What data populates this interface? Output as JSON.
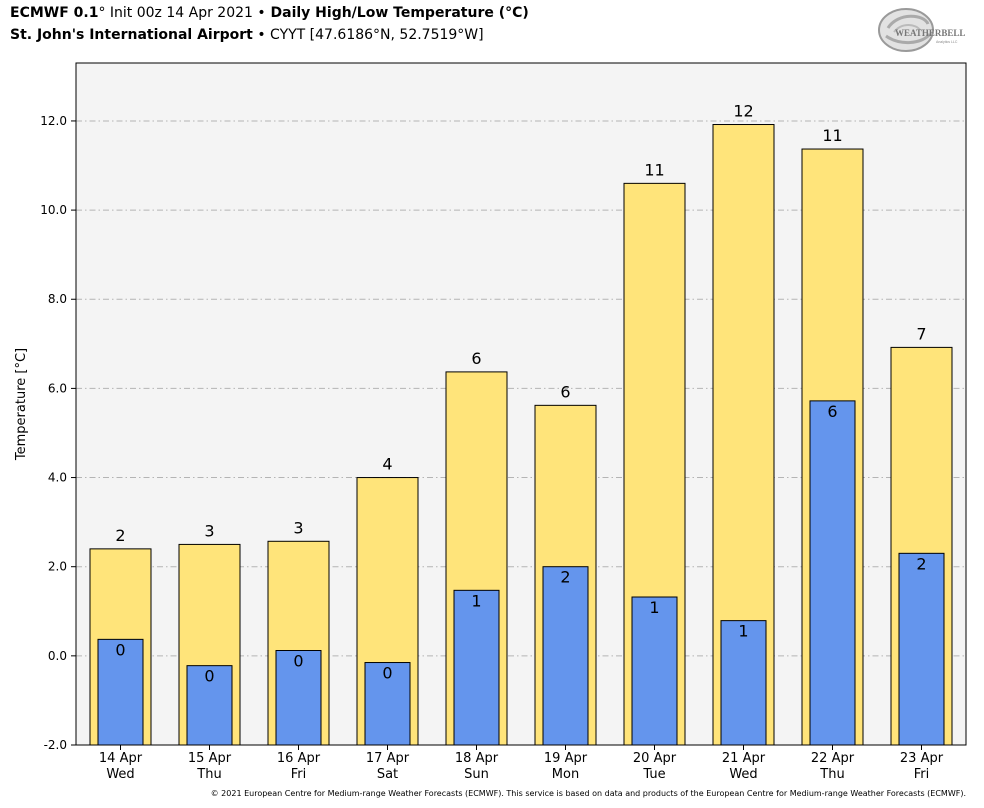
{
  "header": {
    "model": "ECMWF 0.1",
    "deg": "°",
    "init": " Init 00z 14 Apr 2021 ",
    "bullet": "•",
    "product": " Daily High/Low Temperature (°C)",
    "station": "St. John's International Airport",
    "station_bullet": " • ",
    "station_id": "CYYT [47.6186°N, 52.7519°W]"
  },
  "logo": {
    "text": "WEATHERBELL",
    "small": "Analytics LLC",
    "color": "#888888"
  },
  "footer": "© 2021 European Centre for Medium-range Weather Forecasts (ECMWF). This service is based on data and products of the European Centre for Medium-range Weather Forecasts (ECMWF).",
  "chart_data": {
    "type": "bar",
    "ylabel": "Temperature [°C]",
    "ylim": [
      -2.0,
      13.3
    ],
    "yticks": [
      -2.0,
      0.0,
      2.0,
      4.0,
      6.0,
      8.0,
      10.0,
      12.0
    ],
    "ytick_labels": [
      "-2.0",
      "0.0",
      "2.0",
      "4.0",
      "6.0",
      "8.0",
      "10.0",
      "12.0"
    ],
    "grid": true,
    "categories": [
      "14 Apr",
      "15 Apr",
      "16 Apr",
      "17 Apr",
      "18 Apr",
      "19 Apr",
      "20 Apr",
      "21 Apr",
      "22 Apr",
      "23 Apr"
    ],
    "weekdays": [
      "Wed",
      "Thu",
      "Fri",
      "Sat",
      "Sun",
      "Mon",
      "Tue",
      "Wed",
      "Thu",
      "Fri"
    ],
    "series": [
      {
        "color": "#FFE47A",
        "values": [
          2.4,
          2.5,
          2.57,
          4.0,
          6.37,
          5.62,
          10.6,
          11.92,
          11.37,
          6.92
        ],
        "labels": [
          "2",
          "3",
          "3",
          "4",
          "6",
          "6",
          "11",
          "12",
          "11",
          "7"
        ]
      },
      {
        "color": "#6495ED",
        "values": [
          0.37,
          -0.22,
          0.12,
          -0.15,
          1.47,
          2.0,
          1.32,
          0.79,
          5.72,
          2.3
        ],
        "labels": [
          "0",
          "0",
          "0",
          "0",
          "1",
          "2",
          "1",
          "1",
          "6",
          "2"
        ]
      }
    ]
  }
}
